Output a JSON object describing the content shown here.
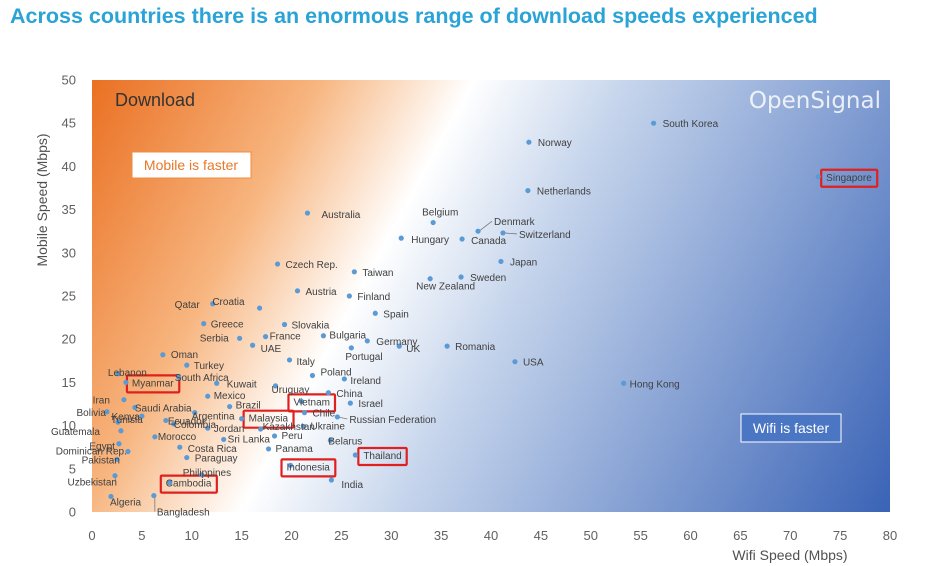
{
  "headline": "Across countries there is an enormous range of download speeds experienced",
  "chart_data": {
    "type": "scatter",
    "title": "Download",
    "watermark": "OpenSignal",
    "xlabel": "Wifi Speed (Mbps)",
    "ylabel": "Mobile Speed (Mbps)",
    "xlim": [
      0,
      80
    ],
    "ylim": [
      0,
      50
    ],
    "xticks": [
      0,
      5,
      10,
      15,
      20,
      25,
      30,
      35,
      40,
      45,
      50,
      55,
      60,
      65,
      70,
      75,
      80
    ],
    "yticks": [
      0,
      5,
      10,
      15,
      20,
      25,
      30,
      35,
      40,
      45,
      50
    ],
    "region_labels": {
      "mobile_faster": "Mobile is faster",
      "wifi_faster": "Wifi is faster"
    },
    "colors": {
      "point": "#5b9bd5",
      "highlight": "#e0201f",
      "label": "#404040",
      "axis_text": "#606060",
      "box_stroke": "#f08c3c",
      "box_text": "#e8782a"
    },
    "points": [
      {
        "country": "South Korea",
        "x": 56.3,
        "y": 45.0
      },
      {
        "country": "Norway",
        "x": 43.8,
        "y": 42.8
      },
      {
        "country": "Singapore",
        "x": 72.8,
        "y": 38.8,
        "highlight": true
      },
      {
        "country": "Netherlands",
        "x": 43.7,
        "y": 37.2
      },
      {
        "country": "Australia",
        "x": 21.6,
        "y": 34.6
      },
      {
        "country": "Belgium",
        "x": 34.2,
        "y": 33.5
      },
      {
        "country": "Denmark",
        "x": 38.7,
        "y": 32.5
      },
      {
        "country": "Switzerland",
        "x": 41.2,
        "y": 32.3
      },
      {
        "country": "Hungary",
        "x": 31.0,
        "y": 31.7
      },
      {
        "country": "Canada",
        "x": 37.1,
        "y": 31.6
      },
      {
        "country": "Japan",
        "x": 41.0,
        "y": 29.0
      },
      {
        "country": "Czech Rep.",
        "x": 18.6,
        "y": 28.7
      },
      {
        "country": "Taiwan",
        "x": 26.3,
        "y": 27.8
      },
      {
        "country": "Sweden",
        "x": 37.0,
        "y": 27.2
      },
      {
        "country": "New Zealand",
        "x": 33.9,
        "y": 27.0
      },
      {
        "country": "Austria",
        "x": 20.6,
        "y": 25.6
      },
      {
        "country": "Finland",
        "x": 25.8,
        "y": 25.0
      },
      {
        "country": "Croatia",
        "x": 16.8,
        "y": 23.6
      },
      {
        "country": "Qatar",
        "x": 12.1,
        "y": 24.1
      },
      {
        "country": "Spain",
        "x": 28.4,
        "y": 23.0
      },
      {
        "country": "Greece",
        "x": 11.2,
        "y": 21.8
      },
      {
        "country": "Slovakia",
        "x": 19.3,
        "y": 21.7
      },
      {
        "country": "Serbia",
        "x": 14.8,
        "y": 20.1
      },
      {
        "country": "France",
        "x": 17.4,
        "y": 20.3
      },
      {
        "country": "Bulgaria",
        "x": 23.2,
        "y": 20.4
      },
      {
        "country": "Germany",
        "x": 27.6,
        "y": 19.8
      },
      {
        "country": "UK",
        "x": 30.8,
        "y": 19.2
      },
      {
        "country": "Romania",
        "x": 35.6,
        "y": 19.2
      },
      {
        "country": "UAE",
        "x": 16.1,
        "y": 19.3
      },
      {
        "country": "Portugal",
        "x": 26.0,
        "y": 19.0
      },
      {
        "country": "Oman",
        "x": 7.1,
        "y": 18.2
      },
      {
        "country": "Italy",
        "x": 19.8,
        "y": 17.6
      },
      {
        "country": "USA",
        "x": 42.4,
        "y": 17.4
      },
      {
        "country": "Turkey",
        "x": 9.5,
        "y": 17.0
      },
      {
        "country": "Lebanon",
        "x": 2.6,
        "y": 16.0
      },
      {
        "country": "South Africa",
        "x": 8.7,
        "y": 15.6
      },
      {
        "country": "Poland",
        "x": 22.1,
        "y": 15.8
      },
      {
        "country": "Ireland",
        "x": 25.3,
        "y": 15.4
      },
      {
        "country": "Myanmar",
        "x": 3.4,
        "y": 15.0,
        "highlight": true
      },
      {
        "country": "Kuwait",
        "x": 12.5,
        "y": 14.9
      },
      {
        "country": "Uruguay",
        "x": 18.4,
        "y": 14.6
      },
      {
        "country": "Hong Kong",
        "x": 53.3,
        "y": 14.9
      },
      {
        "country": "China",
        "x": 23.7,
        "y": 13.8
      },
      {
        "country": "Mexico",
        "x": 11.6,
        "y": 13.4
      },
      {
        "country": "Iran",
        "x": 3.2,
        "y": 13.0
      },
      {
        "country": "Vietnam",
        "x": 21.0,
        "y": 12.8,
        "highlight": true
      },
      {
        "country": "Israel",
        "x": 25.9,
        "y": 12.6
      },
      {
        "country": "Brazil",
        "x": 13.8,
        "y": 12.2
      },
      {
        "country": "Saudi Arabia",
        "x": 4.3,
        "y": 12.1
      },
      {
        "country": "Bolivia",
        "x": 1.5,
        "y": 11.6
      },
      {
        "country": "Argentina",
        "x": 10.3,
        "y": 11.5
      },
      {
        "country": "Chile",
        "x": 21.3,
        "y": 11.5
      },
      {
        "country": "Kenya",
        "x": 5.0,
        "y": 11.1
      },
      {
        "country": "Malaysia",
        "x": 15.0,
        "y": 10.8,
        "highlight": true
      },
      {
        "country": "Russian Federation",
        "x": 24.6,
        "y": 11.0
      },
      {
        "country": "Ecuador",
        "x": 7.4,
        "y": 10.6
      },
      {
        "country": "Tunisia",
        "x": 2.6,
        "y": 10.4
      },
      {
        "country": "Colombia",
        "x": 8.2,
        "y": 10.2
      },
      {
        "country": "Jordan",
        "x": 11.6,
        "y": 9.7
      },
      {
        "country": "Kazakhstan",
        "x": 16.9,
        "y": 9.6
      },
      {
        "country": "Ukraine",
        "x": 21.2,
        "y": 9.9
      },
      {
        "country": "Guatemala",
        "x": 2.9,
        "y": 9.4
      },
      {
        "country": "Morocco",
        "x": 6.3,
        "y": 8.7
      },
      {
        "country": "Peru",
        "x": 18.3,
        "y": 8.8
      },
      {
        "country": "Sri Lanka",
        "x": 13.2,
        "y": 8.4
      },
      {
        "country": "Belarus",
        "x": 23.9,
        "y": 8.3
      },
      {
        "country": "Egypt",
        "x": 2.7,
        "y": 7.9
      },
      {
        "country": "Costa Rica",
        "x": 8.8,
        "y": 7.5
      },
      {
        "country": "Panama",
        "x": 17.7,
        "y": 7.3
      },
      {
        "country": "Dominican Rep.",
        "x": 3.6,
        "y": 7.0
      },
      {
        "country": "Paraguay",
        "x": 9.5,
        "y": 6.3
      },
      {
        "country": "Thailand",
        "x": 26.4,
        "y": 6.6,
        "highlight": true
      },
      {
        "country": "Pakistan",
        "x": 2.5,
        "y": 6.1
      },
      {
        "country": "Indonesia",
        "x": 19.9,
        "y": 5.4,
        "highlight": true
      },
      {
        "country": "Uzbekistan",
        "x": 2.3,
        "y": 4.2
      },
      {
        "country": "Philippines",
        "x": 11.0,
        "y": 4.3
      },
      {
        "country": "Cambodia",
        "x": 7.8,
        "y": 3.4,
        "highlight": true
      },
      {
        "country": "India",
        "x": 24.0,
        "y": 3.7
      },
      {
        "country": "Algeria",
        "x": 1.9,
        "y": 1.8
      },
      {
        "country": "Bangladesh",
        "x": 6.2,
        "y": 1.9
      }
    ]
  }
}
